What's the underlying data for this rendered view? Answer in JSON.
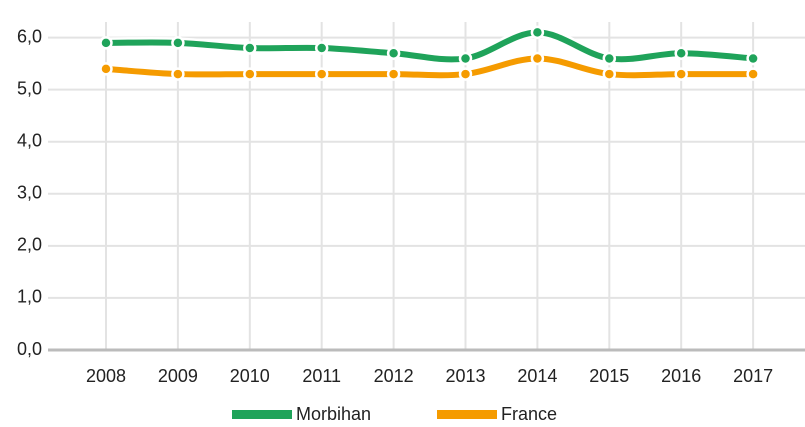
{
  "chart_data": {
    "type": "line",
    "categories": [
      "2008",
      "2009",
      "2010",
      "2011",
      "2012",
      "2013",
      "2014",
      "2015",
      "2016",
      "2017"
    ],
    "series": [
      {
        "name": "Morbihan",
        "color": "#1fa35a",
        "values": [
          5.9,
          5.9,
          5.8,
          5.8,
          5.7,
          5.6,
          6.1,
          5.6,
          5.7,
          5.6
        ]
      },
      {
        "name": "France",
        "color": "#f59b00",
        "values": [
          5.4,
          5.3,
          5.3,
          5.3,
          5.3,
          5.3,
          5.6,
          5.3,
          5.3,
          5.3
        ]
      }
    ],
    "ylim": [
      0,
      6.3
    ],
    "yticks": [
      {
        "value": 0,
        "label": "0,0"
      },
      {
        "value": 1,
        "label": "1,0"
      },
      {
        "value": 2,
        "label": "2,0"
      },
      {
        "value": 3,
        "label": "3,0"
      },
      {
        "value": 4,
        "label": "4,0"
      },
      {
        "value": 5,
        "label": "5,0"
      },
      {
        "value": 6,
        "label": "6,0"
      }
    ],
    "grid": true,
    "legend": "bottom"
  }
}
